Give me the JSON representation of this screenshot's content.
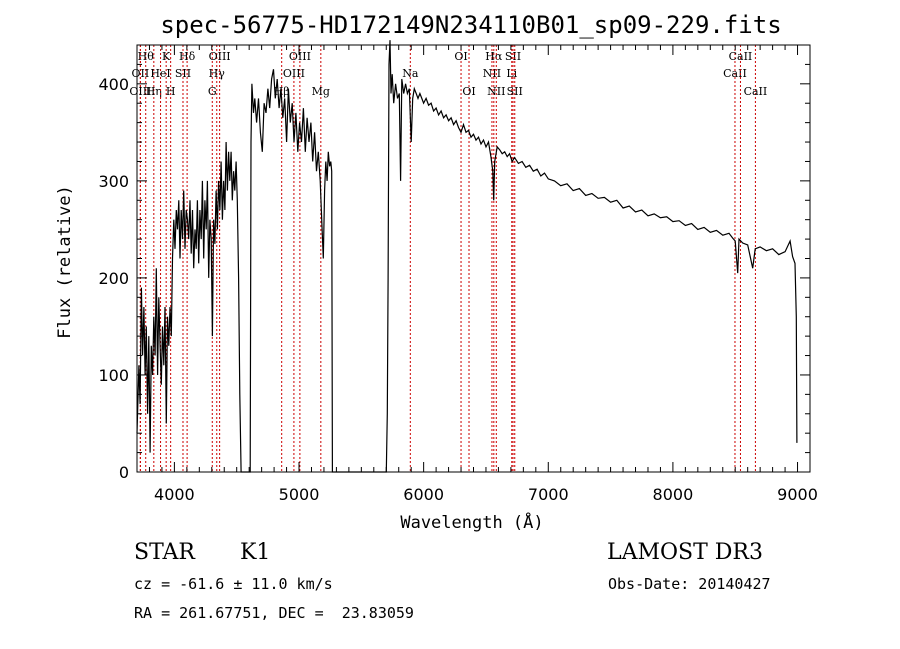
{
  "chart_data": {
    "type": "line",
    "title": "spec-56775-HD172149N234110B01_sp09-229.fits",
    "xlabel": "Wavelength (Å)",
    "ylabel": "Flux (relative)",
    "xlim": [
      3700,
      9100
    ],
    "ylim": [
      0,
      440
    ],
    "x_ticks": [
      4000,
      5000,
      6000,
      7000,
      8000,
      9000
    ],
    "y_ticks": [
      0,
      100,
      200,
      300,
      400
    ],
    "series": [
      {
        "name": "flux",
        "points": [
          [
            3700,
            40
          ],
          [
            3715,
            110
          ],
          [
            3725,
            70
          ],
          [
            3735,
            190
          ],
          [
            3745,
            120
          ],
          [
            3755,
            170
          ],
          [
            3765,
            100
          ],
          [
            3775,
            150
          ],
          [
            3785,
            60
          ],
          [
            3795,
            140
          ],
          [
            3805,
            20
          ],
          [
            3815,
            130
          ],
          [
            3825,
            100
          ],
          [
            3835,
            160
          ],
          [
            3845,
            120
          ],
          [
            3855,
            210
          ],
          [
            3865,
            100
          ],
          [
            3875,
            180
          ],
          [
            3885,
            130
          ],
          [
            3895,
            90
          ],
          [
            3905,
            150
          ],
          [
            3915,
            110
          ],
          [
            3925,
            170
          ],
          [
            3935,
            50
          ],
          [
            3945,
            160
          ],
          [
            3955,
            130
          ],
          [
            3965,
            170
          ],
          [
            3975,
            140
          ],
          [
            3985,
            220
          ],
          [
            3995,
            260
          ],
          [
            4005,
            230
          ],
          [
            4015,
            270
          ],
          [
            4025,
            250
          ],
          [
            4035,
            280
          ],
          [
            4045,
            220
          ],
          [
            4055,
            270
          ],
          [
            4065,
            240
          ],
          [
            4075,
            290
          ],
          [
            4085,
            230
          ],
          [
            4095,
            270
          ],
          [
            4105,
            260
          ],
          [
            4115,
            240
          ],
          [
            4125,
            280
          ],
          [
            4135,
            225
          ],
          [
            4145,
            270
          ],
          [
            4155,
            210
          ],
          [
            4165,
            250
          ],
          [
            4175,
            230
          ],
          [
            4185,
            280
          ],
          [
            4195,
            215
          ],
          [
            4205,
            270
          ],
          [
            4215,
            240
          ],
          [
            4225,
            300
          ],
          [
            4235,
            220
          ],
          [
            4245,
            280
          ],
          [
            4255,
            250
          ],
          [
            4265,
            300
          ],
          [
            4275,
            200
          ],
          [
            4285,
            260
          ],
          [
            4295,
            240
          ],
          [
            4305,
            140
          ],
          [
            4315,
            260
          ],
          [
            4325,
            235
          ],
          [
            4335,
            290
          ],
          [
            4345,
            250
          ],
          [
            4355,
            300
          ],
          [
            4365,
            270
          ],
          [
            4375,
            320
          ],
          [
            4385,
            260
          ],
          [
            4395,
            300
          ],
          [
            4405,
            270
          ],
          [
            4415,
            340
          ],
          [
            4425,
            290
          ],
          [
            4435,
            330
          ],
          [
            4445,
            300
          ],
          [
            4455,
            330
          ],
          [
            4465,
            280
          ],
          [
            4475,
            310
          ],
          [
            4485,
            290
          ],
          [
            4495,
            320
          ],
          [
            4505,
            280
          ],
          [
            4515,
            200
          ],
          [
            4525,
            80
          ],
          [
            4535,
            0
          ],
          [
            4545,
            0
          ],
          [
            4600,
            0
          ],
          [
            4608,
            0
          ],
          [
            4615,
            340
          ],
          [
            4622,
            400
          ],
          [
            4635,
            370
          ],
          [
            4645,
            385
          ],
          [
            4660,
            360
          ],
          [
            4675,
            385
          ],
          [
            4690,
            350
          ],
          [
            4705,
            330
          ],
          [
            4720,
            380
          ],
          [
            4735,
            370
          ],
          [
            4750,
            395
          ],
          [
            4765,
            375
          ],
          [
            4780,
            405
          ],
          [
            4795,
            415
          ],
          [
            4810,
            385
          ],
          [
            4825,
            405
          ],
          [
            4840,
            375
          ],
          [
            4855,
            395
          ],
          [
            4870,
            365
          ],
          [
            4885,
            385
          ],
          [
            4900,
            340
          ],
          [
            4915,
            395
          ],
          [
            4930,
            360
          ],
          [
            4945,
            380
          ],
          [
            4960,
            340
          ],
          [
            4975,
            370
          ],
          [
            4990,
            330
          ],
          [
            5005,
            360
          ],
          [
            5020,
            340
          ],
          [
            5035,
            375
          ],
          [
            5050,
            330
          ],
          [
            5065,
            365
          ],
          [
            5080,
            340
          ],
          [
            5095,
            360
          ],
          [
            5110,
            320
          ],
          [
            5125,
            350
          ],
          [
            5140,
            310
          ],
          [
            5155,
            330
          ],
          [
            5170,
            300
          ],
          [
            5185,
            250
          ],
          [
            5195,
            220
          ],
          [
            5205,
            290
          ],
          [
            5215,
            320
          ],
          [
            5225,
            300
          ],
          [
            5235,
            330
          ],
          [
            5245,
            315
          ],
          [
            5255,
            320
          ],
          [
            5262,
            310
          ],
          [
            5268,
            0
          ],
          [
            5700,
            0
          ],
          [
            5708,
            60
          ],
          [
            5715,
            200
          ],
          [
            5722,
            420
          ],
          [
            5730,
            445
          ],
          [
            5738,
            390
          ],
          [
            5748,
            410
          ],
          [
            5760,
            380
          ],
          [
            5775,
            400
          ],
          [
            5790,
            385
          ],
          [
            5805,
            390
          ],
          [
            5815,
            300
          ],
          [
            5825,
            405
          ],
          [
            5840,
            390
          ],
          [
            5855,
            400
          ],
          [
            5870,
            390
          ],
          [
            5885,
            395
          ],
          [
            5900,
            340
          ],
          [
            5912,
            385
          ],
          [
            5925,
            395
          ],
          [
            5940,
            390
          ],
          [
            5955,
            385
          ],
          [
            5970,
            390
          ],
          [
            5985,
            385
          ],
          [
            6000,
            380
          ],
          [
            6020,
            385
          ],
          [
            6040,
            378
          ],
          [
            6060,
            380
          ],
          [
            6080,
            372
          ],
          [
            6100,
            375
          ],
          [
            6120,
            368
          ],
          [
            6140,
            372
          ],
          [
            6160,
            365
          ],
          [
            6180,
            368
          ],
          [
            6200,
            362
          ],
          [
            6220,
            365
          ],
          [
            6240,
            358
          ],
          [
            6260,
            362
          ],
          [
            6280,
            355
          ],
          [
            6300,
            350
          ],
          [
            6320,
            358
          ],
          [
            6340,
            350
          ],
          [
            6360,
            352
          ],
          [
            6380,
            345
          ],
          [
            6400,
            348
          ],
          [
            6420,
            342
          ],
          [
            6440,
            345
          ],
          [
            6460,
            338
          ],
          [
            6480,
            342
          ],
          [
            6500,
            335
          ],
          [
            6520,
            340
          ],
          [
            6540,
            325
          ],
          [
            6555,
            310
          ],
          [
            6562,
            280
          ],
          [
            6570,
            320
          ],
          [
            6590,
            335
          ],
          [
            6610,
            332
          ],
          [
            6630,
            328
          ],
          [
            6650,
            330
          ],
          [
            6670,
            325
          ],
          [
            6690,
            328
          ],
          [
            6710,
            320
          ],
          [
            6730,
            324
          ],
          [
            6760,
            318
          ],
          [
            6790,
            320
          ],
          [
            6820,
            314
          ],
          [
            6850,
            316
          ],
          [
            6880,
            310
          ],
          [
            6910,
            312
          ],
          [
            6940,
            305
          ],
          [
            6970,
            308
          ],
          [
            7000,
            302
          ],
          [
            7050,
            300
          ],
          [
            7100,
            295
          ],
          [
            7150,
            297
          ],
          [
            7200,
            290
          ],
          [
            7250,
            292
          ],
          [
            7300,
            285
          ],
          [
            7350,
            287
          ],
          [
            7400,
            282
          ],
          [
            7450,
            283
          ],
          [
            7500,
            278
          ],
          [
            7550,
            280
          ],
          [
            7600,
            272
          ],
          [
            7650,
            274
          ],
          [
            7700,
            268
          ],
          [
            7750,
            270
          ],
          [
            7800,
            264
          ],
          [
            7850,
            266
          ],
          [
            7900,
            262
          ],
          [
            7950,
            263
          ],
          [
            8000,
            258
          ],
          [
            8050,
            259
          ],
          [
            8100,
            254
          ],
          [
            8150,
            256
          ],
          [
            8200,
            250
          ],
          [
            8250,
            252
          ],
          [
            8300,
            247
          ],
          [
            8350,
            249
          ],
          [
            8400,
            244
          ],
          [
            8450,
            246
          ],
          [
            8480,
            241
          ],
          [
            8500,
            238
          ],
          [
            8520,
            205
          ],
          [
            8530,
            240
          ],
          [
            8560,
            236
          ],
          [
            8600,
            234
          ],
          [
            8640,
            210
          ],
          [
            8660,
            230
          ],
          [
            8700,
            232
          ],
          [
            8750,
            228
          ],
          [
            8800,
            230
          ],
          [
            8850,
            224
          ],
          [
            8900,
            227
          ],
          [
            8940,
            238
          ],
          [
            8960,
            222
          ],
          [
            8980,
            215
          ],
          [
            8990,
            160
          ],
          [
            8995,
            30
          ]
        ]
      }
    ],
    "line_markers": [
      {
        "wavelength": 3770,
        "label": "Hθ",
        "row": 0
      },
      {
        "wavelength": 3727,
        "label": "OII",
        "row": 1
      },
      {
        "wavelength": 3727,
        "label": "OIII",
        "row": 2
      },
      {
        "wavelength": 3835,
        "label": "Hη",
        "row": 2
      },
      {
        "wavelength": 3934,
        "label": "K",
        "row": 0
      },
      {
        "wavelength": 3970,
        "label": "H",
        "row": 2
      },
      {
        "wavelength": 3889,
        "label": "HeI",
        "row": 1
      },
      {
        "wavelength": 4069,
        "label": "SII",
        "row": 1
      },
      {
        "wavelength": 4102,
        "label": "Hδ",
        "row": 0
      },
      {
        "wavelength": 4340,
        "label": "Hγ",
        "row": 1
      },
      {
        "wavelength": 4363,
        "label": "OIII",
        "row": 0
      },
      {
        "wavelength": 4304,
        "label": "G",
        "row": 2
      },
      {
        "wavelength": 4861,
        "label": "Hβ",
        "row": 2
      },
      {
        "wavelength": 4959,
        "label": "OIII",
        "row": 1
      },
      {
        "wavelength": 5007,
        "label": "OIII",
        "row": 0
      },
      {
        "wavelength": 5175,
        "label": "Mg",
        "row": 2
      },
      {
        "wavelength": 5893,
        "label": "Na",
        "row": 1
      },
      {
        "wavelength": 6300,
        "label": "OI",
        "row": 0
      },
      {
        "wavelength": 6364,
        "label": "OI",
        "row": 2
      },
      {
        "wavelength": 6548,
        "label": "NII",
        "row": 1
      },
      {
        "wavelength": 6563,
        "label": "Hα",
        "row": 0
      },
      {
        "wavelength": 6583,
        "label": "NII",
        "row": 2
      },
      {
        "wavelength": 6707,
        "label": "Li",
        "row": 1
      },
      {
        "wavelength": 6717,
        "label": "SII",
        "row": 0
      },
      {
        "wavelength": 6731,
        "label": "SII",
        "row": 2
      },
      {
        "wavelength": 8498,
        "label": "CaII",
        "row": 1
      },
      {
        "wavelength": 8542,
        "label": "CaII",
        "row": 0
      },
      {
        "wavelength": 8662,
        "label": "CaII",
        "row": 2
      }
    ],
    "marker_color": "#cc0000",
    "line_color": "#000000",
    "grid": false
  },
  "info": {
    "object_class": "STAR",
    "subclass": "K1",
    "survey": "LAMOST DR3",
    "redshift": "cz = -61.6 ± 11.0 km/s",
    "obs_date": "Obs-Date: 20140427",
    "coords": "RA = 261.67751, DEC =  23.83059"
  }
}
